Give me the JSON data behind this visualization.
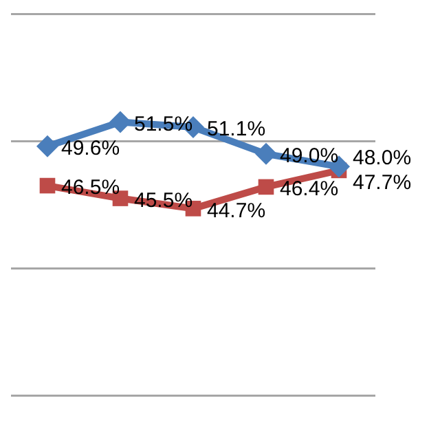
{
  "chart_data": {
    "type": "line",
    "categories": [
      null,
      null,
      null,
      null,
      null
    ],
    "series": [
      {
        "color": "#4a7ebb",
        "marker": "diamond",
        "values": [
          49.6,
          51.5,
          51.1,
          49.0,
          48.0
        ],
        "value_labels": [
          "49.6%",
          "51.5%",
          "51.1%",
          "49.0%",
          "48.0%"
        ]
      },
      {
        "color": "#be4b48",
        "marker": "square",
        "values": [
          46.5,
          45.5,
          44.7,
          46.4,
          47.7
        ],
        "value_labels": [
          "46.5%",
          "45.5%",
          "44.7%",
          "46.4%",
          "47.7%"
        ]
      }
    ],
    "ylim": [
      30,
      60
    ],
    "yticks": [
      {
        "value": 30,
        "label": null
      },
      {
        "value": 40,
        "label": null
      },
      {
        "value": 50,
        "label": null
      },
      {
        "value": 60,
        "label": null
      }
    ],
    "grid": "y",
    "legend": false,
    "line_style": "solid"
  }
}
